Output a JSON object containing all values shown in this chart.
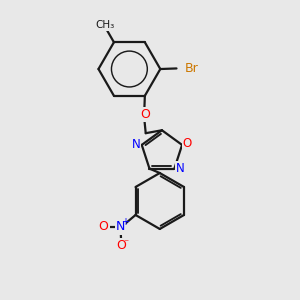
{
  "bg_color": "#e8e8e8",
  "bond_color": "#1a1a1a",
  "bond_width": 1.6,
  "N_color": "#0000ff",
  "O_color": "#ff0000",
  "Br_color": "#cc7700",
  "font_size": 8,
  "fig_size": [
    3.0,
    3.0
  ],
  "dpi": 100,
  "xlim": [
    0,
    10
  ],
  "ylim": [
    0,
    10
  ]
}
